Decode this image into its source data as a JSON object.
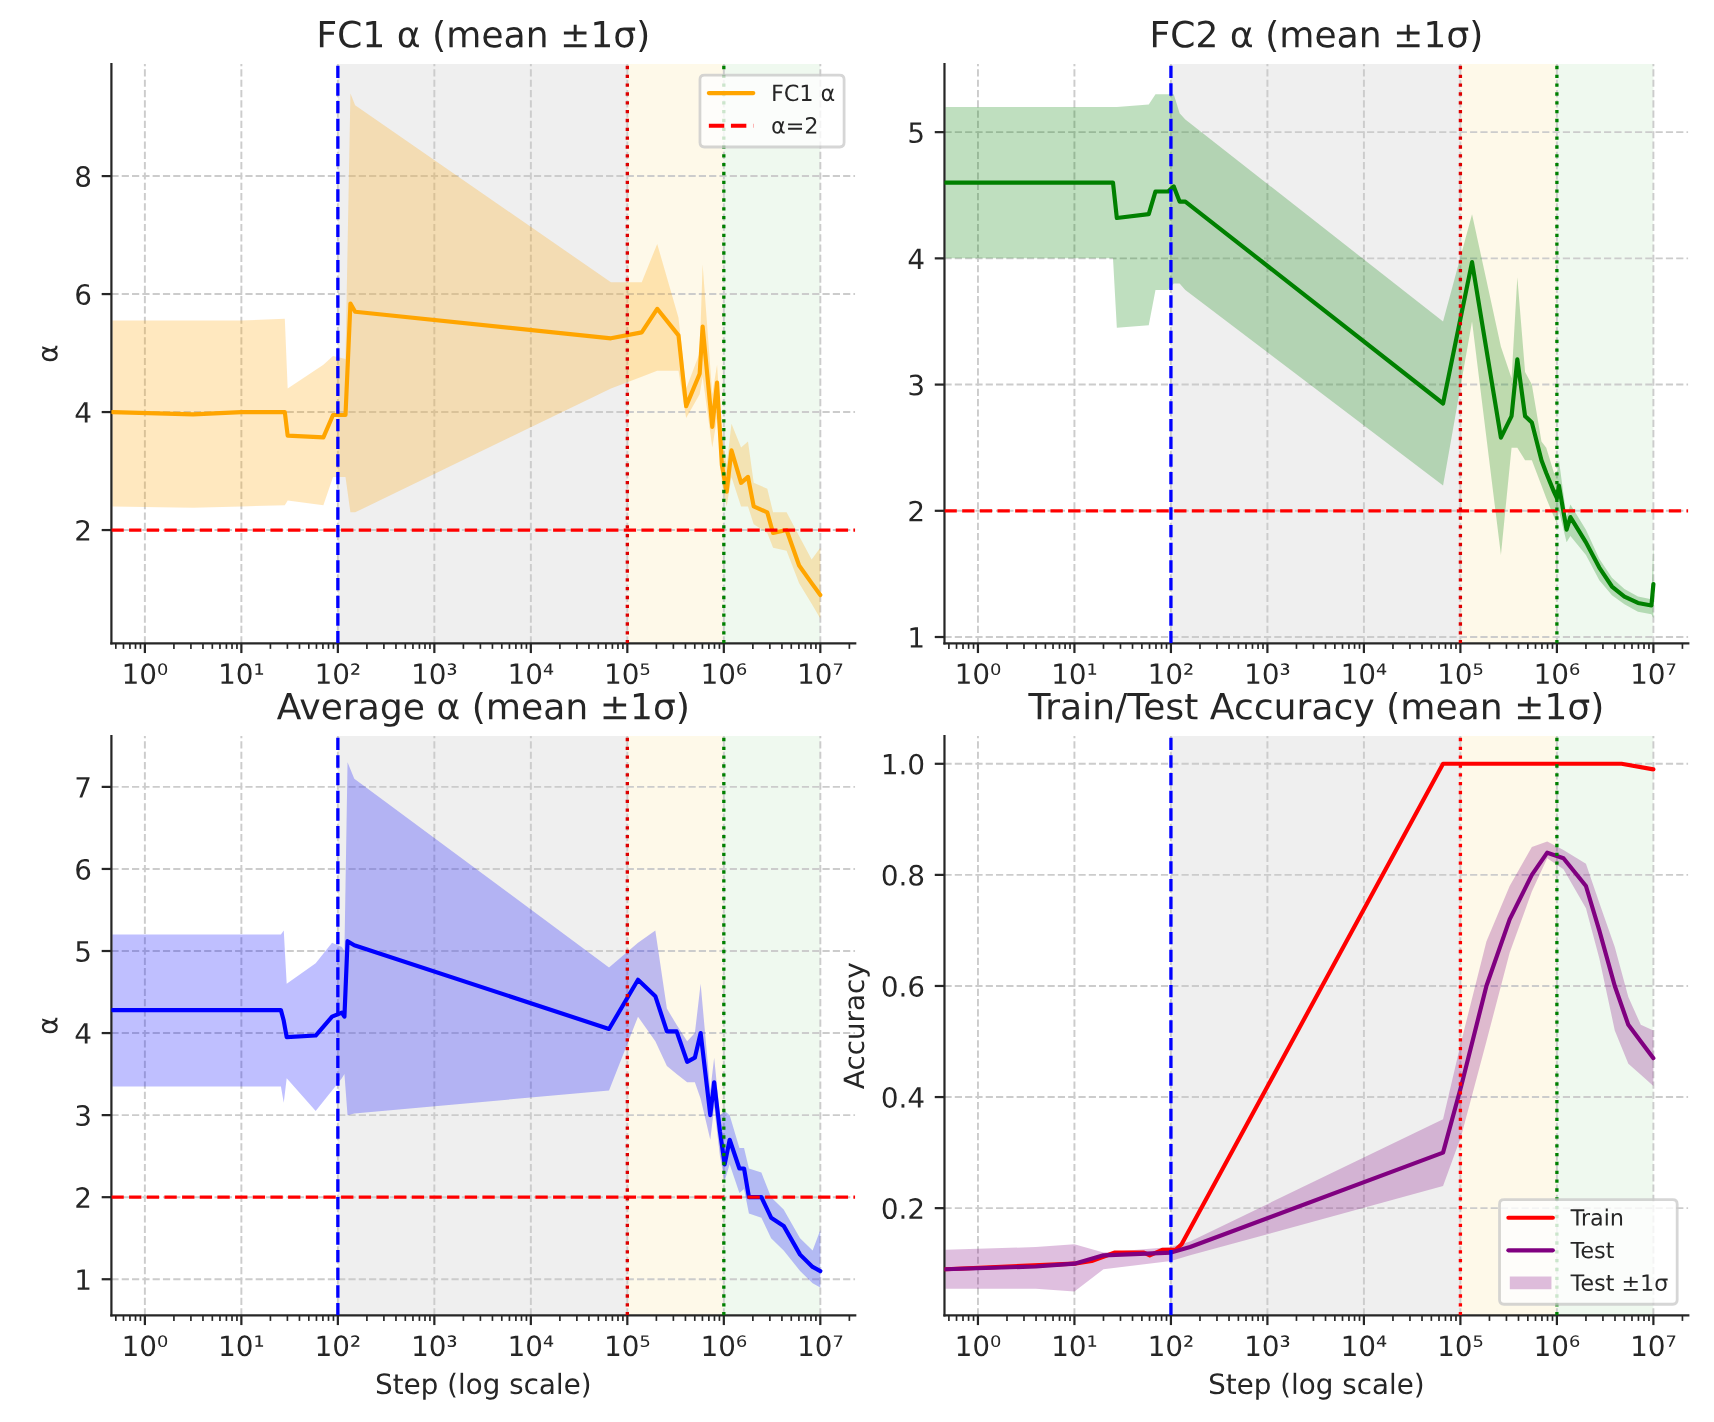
{
  "chart_data": [
    {
      "type": "line",
      "title": "FC1 α (mean ±1σ)",
      "ylabel": "α",
      "log": "x",
      "grid": true,
      "legend": "top right",
      "xlim": [
        0.45,
        23000000.0
      ],
      "xticks": [
        {
          "value": 1,
          "label": "10⁰"
        },
        {
          "value": 10,
          "label": "10¹"
        },
        {
          "value": 100,
          "label": "10²"
        },
        {
          "value": 1000,
          "label": "10³"
        },
        {
          "value": 10000,
          "label": "10⁴"
        },
        {
          "value": 100000,
          "label": "10⁵"
        },
        {
          "value": 1000000,
          "label": "10⁶"
        },
        {
          "value": 10000000,
          "label": "10⁷"
        }
      ],
      "ylim": [
        0.08,
        9.9
      ],
      "yticks": [
        2,
        4,
        6,
        8
      ],
      "bands": [
        {
          "axis": "x",
          "from": 100,
          "to": 100000,
          "color": "#efefef"
        },
        {
          "axis": "x",
          "from": 100000,
          "to": 1000000,
          "color": "#fef9e9"
        },
        {
          "axis": "x",
          "from": 1000000,
          "to": 10000000,
          "color": "#eff9ef"
        }
      ],
      "ref_lines": [
        {
          "axis": "y",
          "value": 2,
          "label": "α=2",
          "color": "#ff0000",
          "line_style": "dashed"
        },
        {
          "axis": "x",
          "value": 100,
          "color": "#0000ff",
          "line_style": "dashed"
        },
        {
          "axis": "x",
          "value": 100000,
          "color": "#dd0000",
          "line_style": "dotted"
        },
        {
          "axis": "x",
          "value": 1000000,
          "color": "#008000",
          "line_style": "dotted"
        }
      ],
      "series": [
        {
          "name": "FC1 α",
          "color": "#ffa500",
          "x": [
            0.46,
            3.16,
            10,
            28.2,
            30.2,
            70.8,
            89.1,
            120,
            135,
            151,
            67600,
            141000,
            204000,
            339000,
            407000,
            562000,
            603000,
            759000,
            851000,
            955000,
            1070000,
            1200000,
            1510000,
            1780000,
            2040000,
            2820000,
            3240000,
            4470000,
            6030000,
            8130000,
            10000000
          ],
          "values": [
            4.0,
            3.96,
            4.0,
            4.0,
            3.6,
            3.57,
            3.95,
            3.95,
            5.84,
            5.7,
            5.25,
            5.35,
            5.75,
            5.3,
            4.1,
            4.65,
            5.45,
            3.75,
            4.5,
            3.1,
            2.65,
            3.35,
            2.8,
            2.9,
            2.4,
            2.3,
            1.95,
            2.0,
            1.4,
            1.1,
            0.9
          ],
          "lower": [
            2.4,
            2.38,
            2.4,
            2.42,
            2.5,
            2.42,
            2.9,
            2.9,
            2.3,
            2.3,
            4.4,
            4.6,
            4.7,
            4.7,
            3.9,
            4.3,
            4.6,
            3.4,
            3.9,
            2.8,
            2.4,
            2.9,
            2.4,
            2.4,
            2.1,
            1.95,
            1.7,
            1.65,
            1.1,
            0.75,
            0.5
          ],
          "upper": [
            5.55,
            5.55,
            5.55,
            5.58,
            4.4,
            4.8,
            4.95,
            4.9,
            9.4,
            9.2,
            6.2,
            6.2,
            6.85,
            5.6,
            4.4,
            5.0,
            6.5,
            4.3,
            4.8,
            3.6,
            3.1,
            3.8,
            3.4,
            3.5,
            2.8,
            2.7,
            2.3,
            2.3,
            1.9,
            1.5,
            1.7
          ]
        }
      ]
    },
    {
      "type": "line",
      "title": "FC2 α (mean ±1σ)",
      "log": "x",
      "grid": true,
      "xlim": [
        0.45,
        23000000.0
      ],
      "xticks": [
        {
          "value": 1,
          "label": "10⁰"
        },
        {
          "value": 10,
          "label": "10¹"
        },
        {
          "value": 100,
          "label": "10²"
        },
        {
          "value": 1000,
          "label": "10³"
        },
        {
          "value": 10000,
          "label": "10⁴"
        },
        {
          "value": 100000,
          "label": "10⁵"
        },
        {
          "value": 1000000,
          "label": "10⁶"
        },
        {
          "value": 10000000,
          "label": "10⁷"
        }
      ],
      "ylim": [
        0.95,
        5.54
      ],
      "yticks": [
        1,
        2,
        3,
        4,
        5
      ],
      "bands": [
        {
          "axis": "x",
          "from": 100,
          "to": 100000,
          "color": "#efefef"
        },
        {
          "axis": "x",
          "from": 100000,
          "to": 1000000,
          "color": "#fef9e9"
        },
        {
          "axis": "x",
          "from": 1000000,
          "to": 10000000,
          "color": "#eff9ef"
        }
      ],
      "ref_lines": [
        {
          "axis": "y",
          "value": 2,
          "color": "#ff0000",
          "line_style": "dashed"
        },
        {
          "axis": "x",
          "value": 100,
          "color": "#0000ff",
          "line_style": "dashed"
        },
        {
          "axis": "x",
          "value": 100000,
          "color": "#dd0000",
          "line_style": "dotted"
        },
        {
          "axis": "x",
          "value": 1000000,
          "color": "#008000",
          "line_style": "dotted"
        }
      ],
      "series": [
        {
          "color": "#008000",
          "x": [
            0.46,
            3.16,
            10,
            25.1,
            27.5,
            58.9,
            69.2,
            93.3,
            107,
            123,
            141,
            66100,
            132000,
            263000,
            339000,
            389000,
            468000,
            550000,
            692000,
            776000,
            933000,
            1000000,
            1050000,
            1260000,
            1380000,
            2000000,
            2750000,
            3720000,
            5010000,
            6920000,
            9550000,
            10000000
          ],
          "values": [
            4.6,
            4.6,
            4.6,
            4.6,
            4.32,
            4.35,
            4.53,
            4.53,
            4.57,
            4.45,
            4.45,
            2.85,
            3.97,
            2.58,
            2.75,
            3.2,
            2.75,
            2.7,
            2.4,
            2.3,
            2.15,
            2.1,
            2.2,
            1.85,
            1.95,
            1.75,
            1.55,
            1.4,
            1.32,
            1.27,
            1.25,
            1.42
          ],
          "lower": [
            4.0,
            4.0,
            4.0,
            4.0,
            3.45,
            3.47,
            3.75,
            3.75,
            3.8,
            3.8,
            3.75,
            2.2,
            3.5,
            1.65,
            2.5,
            2.5,
            2.4,
            2.4,
            2.2,
            2.1,
            1.95,
            1.9,
            2.0,
            1.75,
            1.8,
            1.65,
            1.45,
            1.33,
            1.26,
            1.2,
            1.18,
            1.15
          ],
          "upper": [
            5.2,
            5.2,
            5.2,
            5.2,
            5.2,
            5.22,
            5.3,
            5.3,
            5.3,
            5.15,
            5.1,
            3.5,
            4.35,
            3.3,
            3.05,
            3.85,
            3.1,
            3.0,
            2.55,
            2.5,
            2.3,
            2.3,
            2.4,
            1.95,
            2.05,
            1.85,
            1.62,
            1.47,
            1.38,
            1.32,
            1.3,
            1.75
          ]
        }
      ]
    },
    {
      "type": "line",
      "title": "Average α (mean ±1σ)",
      "xlabel": "Step (log scale)",
      "ylabel": "α",
      "log": "x",
      "grid": true,
      "xlim": [
        0.45,
        23000000.0
      ],
      "xticks": [
        {
          "value": 1,
          "label": "10⁰"
        },
        {
          "value": 10,
          "label": "10¹"
        },
        {
          "value": 100,
          "label": "10²"
        },
        {
          "value": 1000,
          "label": "10³"
        },
        {
          "value": 10000,
          "label": "10⁴"
        },
        {
          "value": 100000,
          "label": "10⁵"
        },
        {
          "value": 1000000,
          "label": "10⁶"
        },
        {
          "value": 10000000,
          "label": "10⁷"
        }
      ],
      "ylim": [
        0.56,
        7.62
      ],
      "yticks": [
        1,
        2,
        3,
        4,
        5,
        6,
        7
      ],
      "bands": [
        {
          "axis": "x",
          "from": 100,
          "to": 100000,
          "color": "#efefef"
        },
        {
          "axis": "x",
          "from": 100000,
          "to": 1000000,
          "color": "#fef9e9"
        },
        {
          "axis": "x",
          "from": 1000000,
          "to": 10000000,
          "color": "#eff9ef"
        }
      ],
      "ref_lines": [
        {
          "axis": "y",
          "value": 2,
          "color": "#ff0000",
          "line_style": "dashed"
        },
        {
          "axis": "x",
          "value": 100,
          "color": "#0000ff",
          "line_style": "dashed"
        },
        {
          "axis": "x",
          "value": 100000,
          "color": "#dd0000",
          "line_style": "dotted"
        },
        {
          "axis": "x",
          "value": 1000000,
          "color": "#008000",
          "line_style": "dotted"
        }
      ],
      "series": [
        {
          "color": "#0000ff",
          "x": [
            0.46,
            3.16,
            10,
            25.7,
            27.5,
            29.5,
            58.9,
            87.1,
            110,
            117,
            126,
            148,
            64600,
            129000,
            195000,
            257000,
            324000,
            417000,
            501000,
            575000,
            724000,
            794000,
            912000,
            1020000,
            1150000,
            1450000,
            1620000,
            1820000,
            2450000,
            3090000,
            4170000,
            6170000,
            8320000,
            10000000
          ],
          "values": [
            4.28,
            4.28,
            4.28,
            4.28,
            4.15,
            3.95,
            3.97,
            4.2,
            4.25,
            4.2,
            5.12,
            5.07,
            4.05,
            4.65,
            4.45,
            4.02,
            4.02,
            3.65,
            3.7,
            4.0,
            3.0,
            3.4,
            2.8,
            2.4,
            2.7,
            2.35,
            2.35,
            2.0,
            2.0,
            1.75,
            1.65,
            1.3,
            1.15,
            1.1
          ],
          "lower": [
            3.35,
            3.35,
            3.35,
            3.35,
            3.15,
            3.45,
            3.05,
            3.3,
            3.45,
            3.5,
            3.0,
            3.02,
            3.3,
            4.2,
            3.9,
            3.6,
            3.5,
            3.4,
            3.4,
            3.2,
            2.7,
            3.1,
            2.5,
            2.2,
            2.4,
            2.05,
            2.1,
            1.8,
            1.75,
            1.5,
            1.35,
            1.1,
            0.95,
            0.9
          ],
          "upper": [
            5.2,
            5.2,
            5.2,
            5.2,
            5.25,
            4.6,
            4.85,
            5.1,
            5.05,
            5.0,
            7.3,
            7.1,
            4.8,
            5.1,
            5.25,
            4.3,
            4.1,
            3.9,
            4.0,
            4.6,
            3.3,
            3.7,
            3.0,
            3.05,
            3.0,
            2.6,
            2.6,
            2.35,
            2.3,
            2.0,
            1.85,
            1.5,
            1.35,
            1.6
          ]
        }
      ]
    },
    {
      "type": "line",
      "title": "Train/Test Accuracy (mean ±1σ)",
      "xlabel": "Step (log scale)",
      "ylabel": "Accuracy",
      "log": "x",
      "grid": true,
      "legend": "bottom right",
      "xlim": [
        0.45,
        23000000.0
      ],
      "xticks": [
        {
          "value": 1,
          "label": "10⁰"
        },
        {
          "value": 10,
          "label": "10¹"
        },
        {
          "value": 100,
          "label": "10²"
        },
        {
          "value": 1000,
          "label": "10³"
        },
        {
          "value": 10000,
          "label": "10⁴"
        },
        {
          "value": 100000,
          "label": "10⁵"
        },
        {
          "value": 1000000,
          "label": "10⁶"
        },
        {
          "value": 10000000,
          "label": "10⁷"
        }
      ],
      "ylim": [
        0.007,
        1.05
      ],
      "yticks": [
        0.2,
        0.4,
        0.6,
        0.8,
        {
          "value": 1,
          "label": "1.0"
        }
      ],
      "bands": [
        {
          "axis": "x",
          "from": 100,
          "to": 100000,
          "color": "#efefef"
        },
        {
          "axis": "x",
          "from": 100000,
          "to": 1000000,
          "color": "#fef9e9"
        },
        {
          "axis": "x",
          "from": 1000000,
          "to": 10000000,
          "color": "#eff9ef"
        }
      ],
      "ref_lines": [
        {
          "axis": "x",
          "value": 100,
          "color": "#0000ff",
          "line_style": "dashed"
        },
        {
          "axis": "x",
          "value": 100000,
          "color": "#ff0000",
          "line_style": "dotted"
        },
        {
          "axis": "x",
          "value": 1000000,
          "color": "#008000",
          "line_style": "dotted"
        }
      ],
      "series": [
        {
          "name": "Train",
          "color": "#ff0000",
          "x": [
            0.46,
            10,
            15.1,
            26.3,
            52.5,
            60.3,
            81.3,
            112,
            129,
            66100,
            4680000,
            10000000
          ],
          "values": [
            0.09,
            0.1,
            0.105,
            0.12,
            0.12,
            0.115,
            0.125,
            0.125,
            0.135,
            1.0,
            1.0,
            0.99
          ]
        },
        {
          "name": "Test",
          "color": "#800080",
          "x": [
            0.46,
            3.98,
            10,
            20,
            100,
            158,
            66100,
            102000,
            186000,
            324000,
            550000,
            794000,
            1170000,
            2000000,
            2750000,
            3980000,
            5500000,
            7410000,
            10000000
          ],
          "values": [
            0.09,
            0.095,
            0.1,
            0.115,
            0.12,
            0.13,
            0.3,
            0.42,
            0.6,
            0.72,
            0.8,
            0.84,
            0.83,
            0.78,
            0.7,
            0.6,
            0.53,
            0.5,
            0.47
          ],
          "lower": [
            0.055,
            0.055,
            0.05,
            0.09,
            0.105,
            0.115,
            0.24,
            0.33,
            0.5,
            0.66,
            0.77,
            0.83,
            0.81,
            0.74,
            0.65,
            0.52,
            0.46,
            0.44,
            0.42
          ],
          "upper": [
            0.125,
            0.13,
            0.135,
            0.12,
            0.13,
            0.14,
            0.36,
            0.5,
            0.68,
            0.78,
            0.85,
            0.86,
            0.845,
            0.82,
            0.75,
            0.67,
            0.58,
            0.53,
            0.52
          ]
        },
        {
          "type": "area",
          "name": "Test ±1σ",
          "color": "#800080"
        }
      ]
    }
  ]
}
